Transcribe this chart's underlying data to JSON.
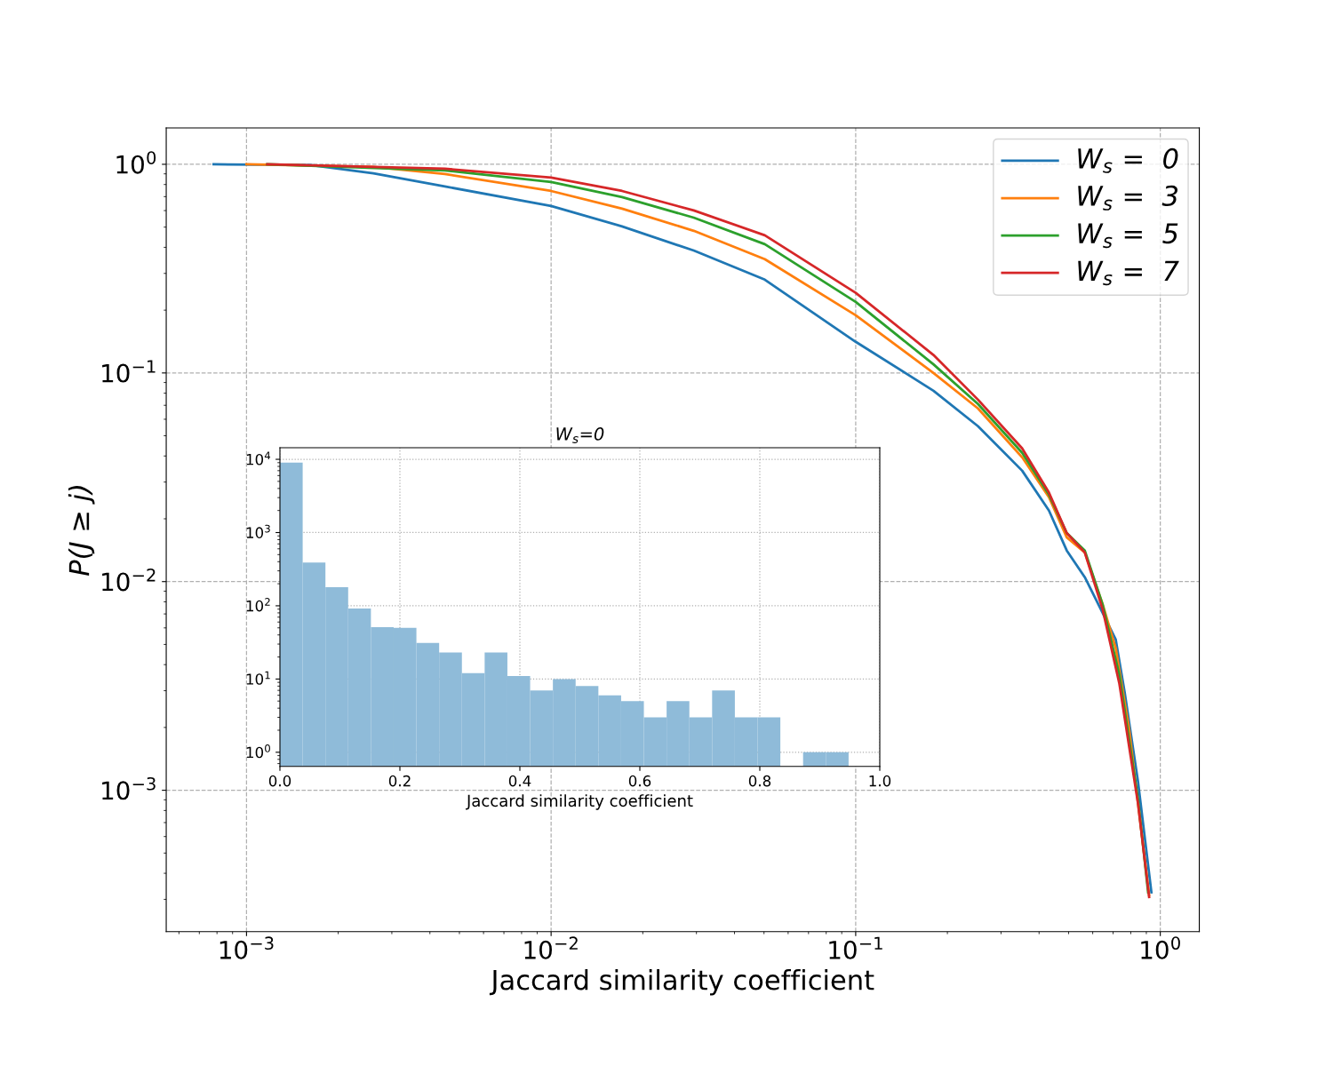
{
  "chart_data": [
    {
      "type": "line",
      "xlabel": "Jaccard similarity coefficient",
      "ylabel": "P(J ≥ j)",
      "log": "xy",
      "grid": true,
      "legend": "top right",
      "line_style": "solid",
      "xlim": [
        0.000545,
        1.343
      ],
      "ylim": [
        0.00021,
        1.494
      ],
      "xticks": [
        {
          "value": 0.001,
          "label": "10$^{−3}$"
        },
        {
          "value": 0.01,
          "label": "10$^{−2}$"
        },
        {
          "value": 0.1,
          "label": "10$^{−1}$"
        },
        {
          "value": 1,
          "label": "10$^{0}$"
        }
      ],
      "yticks": [
        {
          "value": 0.001,
          "label": "10$^{−3}$"
        },
        {
          "value": 0.01,
          "label": "10$^{−2}$"
        },
        {
          "value": 0.1,
          "label": "10$^{−1}$"
        },
        {
          "value": 1,
          "label": "10$^{0}$"
        }
      ],
      "series": [
        {
          "name": "W$_{s}$ =  0",
          "color": "#1f77b4",
          "x": [
            0.00078,
            0.00163,
            0.00261,
            0.00448,
            0.01,
            0.0171,
            0.0294,
            0.0503,
            0.1,
            0.18,
            0.252,
            0.352,
            0.431,
            0.493,
            0.565,
            0.646,
            0.714,
            0.764,
            0.845,
            0.935
          ],
          "values": [
            1.0,
            0.99,
            0.906,
            0.783,
            0.631,
            0.504,
            0.386,
            0.28,
            0.141,
            0.0822,
            0.0556,
            0.034,
            0.0219,
            0.0141,
            0.0105,
            0.0071,
            0.00528,
            0.00294,
            0.0011,
            0.000324
          ]
        },
        {
          "name": "W$_{s}$ =  3",
          "color": "#ff7f0e",
          "x": [
            0.001,
            0.00261,
            0.00448,
            0.01,
            0.0171,
            0.0294,
            0.0503,
            0.1,
            0.18,
            0.252,
            0.352,
            0.431,
            0.493,
            0.565,
            0.646,
            0.714,
            0.789,
            0.919
          ],
          "values": [
            1.0,
            0.971,
            0.898,
            0.745,
            0.613,
            0.48,
            0.351,
            0.189,
            0.1,
            0.0676,
            0.0394,
            0.0254,
            0.0163,
            0.0138,
            0.00783,
            0.0048,
            0.00199,
            0.000315
          ]
        },
        {
          "name": "W$_{s}$ =  5",
          "color": "#2ca02c",
          "x": [
            0.00117,
            0.00448,
            0.01,
            0.0171,
            0.0294,
            0.0503,
            0.1,
            0.18,
            0.252,
            0.352,
            0.431,
            0.493,
            0.565,
            0.646,
            0.734,
            0.845,
            0.912
          ],
          "values": [
            1.0,
            0.934,
            0.822,
            0.696,
            0.555,
            0.414,
            0.219,
            0.11,
            0.071,
            0.0414,
            0.0261,
            0.0171,
            0.0141,
            0.0078,
            0.00357,
            0.000906,
            0.000324
          ]
        },
        {
          "name": "W$_{s}$ =  7",
          "color": "#d62728",
          "x": [
            0.00117,
            0.00448,
            0.01,
            0.0171,
            0.0294,
            0.0503,
            0.1,
            0.18,
            0.252,
            0.352,
            0.431,
            0.493,
            0.565,
            0.646,
            0.734,
            0.845,
            0.919
          ],
          "values": [
            1.0,
            0.952,
            0.863,
            0.745,
            0.601,
            0.457,
            0.242,
            0.122,
            0.0745,
            0.0435,
            0.0267,
            0.0171,
            0.0138,
            0.00741,
            0.00324,
            0.000863,
            0.000308
          ]
        }
      ]
    },
    {
      "type": "histogram",
      "title": "W$_{s}$=0",
      "xlabel": "Jaccard similarity coefficient",
      "log": "y",
      "grid": true,
      "color": "#8fbbd9",
      "bins": [
        0.0,
        0.03792,
        0.07584,
        0.11376,
        0.15168,
        0.1896,
        0.22752,
        0.26544,
        0.30336,
        0.34128,
        0.3792,
        0.41712,
        0.45504,
        0.49296,
        0.53088,
        0.5688,
        0.60672,
        0.64464,
        0.68256,
        0.72048,
        0.7584,
        0.79632,
        0.83424,
        0.87216,
        0.91008,
        0.948
      ],
      "values": [
        9000,
        390,
        180,
        92,
        51,
        50,
        31,
        23,
        12,
        23,
        11,
        7,
        10,
        8,
        6,
        5,
        3,
        5,
        3,
        7,
        3,
        3,
        null,
        1,
        1
      ],
      "xlim": [
        0,
        1.0
      ],
      "ylim": [
        0.64,
        14400
      ],
      "xticks": [
        {
          "value": 0,
          "label": "0.0"
        },
        {
          "value": 0.2,
          "label": "0.2"
        },
        {
          "value": 0.4,
          "label": "0.4"
        },
        {
          "value": 0.6,
          "label": "0.6"
        },
        {
          "value": 0.8,
          "label": "0.8"
        },
        {
          "value": 1.0,
          "label": "1.0"
        }
      ],
      "yticks": [
        {
          "value": 1,
          "label": "10$^{0}$"
        },
        {
          "value": 10,
          "label": "10$^{1}$"
        },
        {
          "value": 100,
          "label": "10$^{2}$"
        },
        {
          "value": 1000,
          "label": "10$^{3}$"
        },
        {
          "value": 10000,
          "label": "10$^{4}$"
        }
      ]
    }
  ]
}
